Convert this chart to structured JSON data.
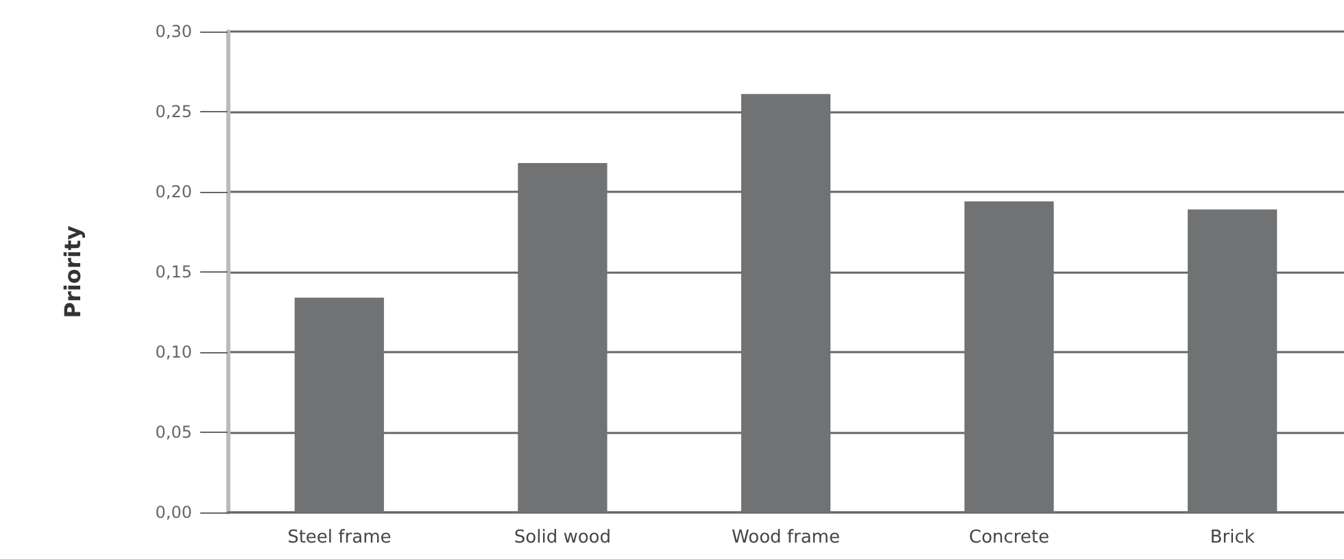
{
  "chart_data": {
    "type": "bar",
    "ylabel": "Priority",
    "categories": [
      "Steel frame",
      "Solid wood",
      "Wood frame",
      "Concrete",
      "Brick"
    ],
    "values": [
      0.134,
      0.218,
      0.261,
      0.194,
      0.189
    ],
    "color": "#707273",
    "ylim": [
      0,
      0.3
    ],
    "yticks": [
      {
        "value": 0,
        "label": "0,00"
      },
      {
        "value": 0.05,
        "label": "0,05"
      },
      {
        "value": 0.1,
        "label": "0,10"
      },
      {
        "value": 0.15,
        "label": "0,15"
      },
      {
        "value": 0.2,
        "label": "0,20"
      },
      {
        "value": 0.25,
        "label": "0,25"
      },
      {
        "value": 0.3,
        "label": "0,30"
      }
    ],
    "grid": "y"
  }
}
